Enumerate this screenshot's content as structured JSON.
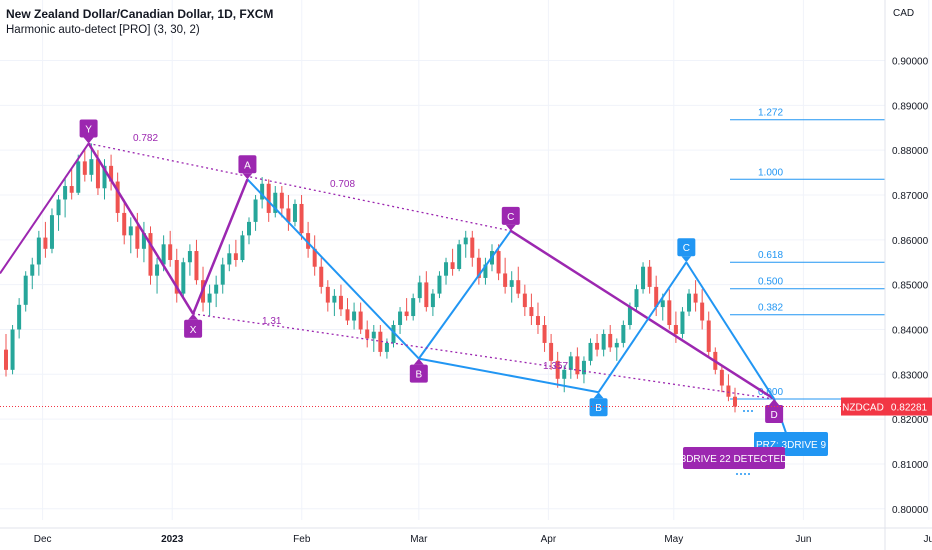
{
  "header": {
    "symbol_title": "New Zealand Dollar/Canadian Dollar, 1D, FXCM",
    "indicator_title": "Harmonic auto-detect [PRO] (3, 30, 2)"
  },
  "price_axis": {
    "currency": "CAD",
    "ticks": [
      "0.90000",
      "0.89000",
      "0.88000",
      "0.87000",
      "0.86000",
      "0.85000",
      "0.84000",
      "0.83000",
      "0.82000",
      "0.81000",
      "0.80000"
    ]
  },
  "time_axis": {
    "ticks": [
      "Dec",
      "2023",
      "Feb",
      "Mar",
      "Apr",
      "May",
      "Jun",
      "Ju"
    ]
  },
  "price_tag": {
    "symbol": "NZDCAD",
    "value": "0.82281"
  },
  "colors": {
    "up": "#26a69a",
    "down": "#ef5350",
    "harmonic_purple": "#9c27b0",
    "harmonic_blue": "#2196f3",
    "price_line": "#f23645"
  },
  "chart_data": {
    "type": "candlestick",
    "ylim": [
      0.7975,
      0.9135
    ],
    "fib_levels": [
      "1.272",
      "1.000",
      "0.618",
      "0.500",
      "0.382",
      "0.000"
    ],
    "fib_values": [
      0.8868,
      0.8735,
      0.855,
      0.8491,
      0.8433,
      0.8245
    ],
    "pattern_3drive": {
      "points": [
        {
          "label": "Y",
          "x": "2022-12-12",
          "y": 0.8815
        },
        {
          "label": "X",
          "x": "2023-01-06",
          "y": 0.8435
        },
        {
          "label": "A",
          "x": "2023-01-19",
          "y": 0.8735
        },
        {
          "label": "B",
          "x": "2023-03-01",
          "y": 0.8335
        },
        {
          "label": "C",
          "x": "2023-03-23",
          "y": 0.862
        },
        {
          "label": "D",
          "x": "2023-05-25",
          "y": 0.8245
        }
      ],
      "ratios": [
        "0.782",
        "0.708",
        "1.31"
      ]
    },
    "pattern_blue": {
      "points": [
        {
          "label": "B",
          "x": "2023-04-13",
          "y": 0.826
        },
        {
          "label": "C",
          "x": "2023-05-04",
          "y": 0.855
        },
        {
          "label": "D",
          "x": "2023-05-25",
          "y": 0.8245
        }
      ],
      "ratios": [
        "1.357"
      ]
    },
    "badges": [
      "3DRIVE 22 DETECTED",
      "PRZ: 3DRIVE 9"
    ],
    "candles": [
      [
        0.8355,
        0.839,
        0.8295,
        0.831
      ],
      [
        0.831,
        0.841,
        0.83,
        0.84
      ],
      [
        0.84,
        0.847,
        0.838,
        0.8455
      ],
      [
        0.8455,
        0.853,
        0.844,
        0.852
      ],
      [
        0.852,
        0.856,
        0.849,
        0.8545
      ],
      [
        0.8545,
        0.862,
        0.852,
        0.8605
      ],
      [
        0.8605,
        0.864,
        0.856,
        0.858
      ],
      [
        0.858,
        0.867,
        0.857,
        0.8655
      ],
      [
        0.8655,
        0.87,
        0.862,
        0.869
      ],
      [
        0.869,
        0.874,
        0.865,
        0.872
      ],
      [
        0.872,
        0.876,
        0.869,
        0.8705
      ],
      [
        0.8705,
        0.879,
        0.87,
        0.8775
      ],
      [
        0.8775,
        0.88,
        0.873,
        0.8745
      ],
      [
        0.8745,
        0.8815,
        0.873,
        0.878
      ],
      [
        0.878,
        0.88,
        0.87,
        0.8715
      ],
      [
        0.8715,
        0.878,
        0.869,
        0.8765
      ],
      [
        0.8765,
        0.879,
        0.871,
        0.873
      ],
      [
        0.873,
        0.875,
        0.864,
        0.866
      ],
      [
        0.866,
        0.869,
        0.859,
        0.861
      ],
      [
        0.861,
        0.865,
        0.857,
        0.863
      ],
      [
        0.863,
        0.866,
        0.856,
        0.858
      ],
      [
        0.858,
        0.864,
        0.855,
        0.8615
      ],
      [
        0.8615,
        0.863,
        0.85,
        0.852
      ],
      [
        0.852,
        0.856,
        0.848,
        0.8545
      ],
      [
        0.8545,
        0.861,
        0.853,
        0.859
      ],
      [
        0.859,
        0.862,
        0.854,
        0.8555
      ],
      [
        0.8555,
        0.858,
        0.846,
        0.848
      ],
      [
        0.848,
        0.856,
        0.847,
        0.855
      ],
      [
        0.855,
        0.859,
        0.852,
        0.8575
      ],
      [
        0.8575,
        0.86,
        0.85,
        0.851
      ],
      [
        0.851,
        0.854,
        0.844,
        0.846
      ],
      [
        0.846,
        0.85,
        0.843,
        0.848
      ],
      [
        0.848,
        0.852,
        0.845,
        0.85
      ],
      [
        0.85,
        0.856,
        0.848,
        0.8545
      ],
      [
        0.8545,
        0.859,
        0.853,
        0.857
      ],
      [
        0.857,
        0.86,
        0.854,
        0.8555
      ],
      [
        0.8555,
        0.862,
        0.855,
        0.861
      ],
      [
        0.861,
        0.865,
        0.859,
        0.864
      ],
      [
        0.864,
        0.87,
        0.862,
        0.869
      ],
      [
        0.869,
        0.874,
        0.867,
        0.8725
      ],
      [
        0.8725,
        0.8735,
        0.864,
        0.866
      ],
      [
        0.866,
        0.872,
        0.865,
        0.8705
      ],
      [
        0.8705,
        0.872,
        0.865,
        0.867
      ],
      [
        0.867,
        0.87,
        0.862,
        0.864
      ],
      [
        0.864,
        0.869,
        0.863,
        0.868
      ],
      [
        0.868,
        0.87,
        0.86,
        0.8615
      ],
      [
        0.8615,
        0.864,
        0.856,
        0.858
      ],
      [
        0.858,
        0.861,
        0.852,
        0.854
      ],
      [
        0.854,
        0.856,
        0.848,
        0.8495
      ],
      [
        0.8495,
        0.851,
        0.844,
        0.846
      ],
      [
        0.846,
        0.849,
        0.843,
        0.8475
      ],
      [
        0.8475,
        0.85,
        0.843,
        0.8445
      ],
      [
        0.8445,
        0.847,
        0.841,
        0.842
      ],
      [
        0.842,
        0.846,
        0.84,
        0.844
      ],
      [
        0.844,
        0.846,
        0.839,
        0.84
      ],
      [
        0.84,
        0.842,
        0.836,
        0.838
      ],
      [
        0.838,
        0.841,
        0.835,
        0.8395
      ],
      [
        0.8395,
        0.841,
        0.834,
        0.835
      ],
      [
        0.835,
        0.838,
        0.8335,
        0.837
      ],
      [
        0.837,
        0.842,
        0.836,
        0.841
      ],
      [
        0.841,
        0.845,
        0.839,
        0.844
      ],
      [
        0.844,
        0.847,
        0.842,
        0.843
      ],
      [
        0.843,
        0.848,
        0.842,
        0.847
      ],
      [
        0.847,
        0.852,
        0.846,
        0.8505
      ],
      [
        0.8505,
        0.853,
        0.844,
        0.845
      ],
      [
        0.845,
        0.849,
        0.843,
        0.848
      ],
      [
        0.848,
        0.853,
        0.847,
        0.852
      ],
      [
        0.852,
        0.856,
        0.85,
        0.855
      ],
      [
        0.855,
        0.858,
        0.852,
        0.8535
      ],
      [
        0.8535,
        0.86,
        0.853,
        0.859
      ],
      [
        0.859,
        0.862,
        0.856,
        0.8605
      ],
      [
        0.8605,
        0.862,
        0.854,
        0.856
      ],
      [
        0.856,
        0.858,
        0.85,
        0.8515
      ],
      [
        0.8515,
        0.856,
        0.85,
        0.8545
      ],
      [
        0.8545,
        0.859,
        0.853,
        0.8575
      ],
      [
        0.8575,
        0.859,
        0.851,
        0.8525
      ],
      [
        0.8525,
        0.856,
        0.848,
        0.8495
      ],
      [
        0.8495,
        0.853,
        0.846,
        0.851
      ],
      [
        0.851,
        0.854,
        0.847,
        0.848
      ],
      [
        0.848,
        0.85,
        0.843,
        0.845
      ],
      [
        0.845,
        0.848,
        0.841,
        0.843
      ],
      [
        0.843,
        0.846,
        0.839,
        0.841
      ],
      [
        0.841,
        0.843,
        0.835,
        0.837
      ],
      [
        0.837,
        0.839,
        0.831,
        0.833
      ],
      [
        0.833,
        0.835,
        0.827,
        0.829
      ],
      [
        0.829,
        0.832,
        0.826,
        0.831
      ],
      [
        0.831,
        0.835,
        0.829,
        0.834
      ],
      [
        0.834,
        0.836,
        0.829,
        0.83
      ],
      [
        0.83,
        0.834,
        0.828,
        0.833
      ],
      [
        0.833,
        0.838,
        0.832,
        0.837
      ],
      [
        0.837,
        0.839,
        0.834,
        0.8355
      ],
      [
        0.8355,
        0.84,
        0.834,
        0.839
      ],
      [
        0.839,
        0.841,
        0.835,
        0.836
      ],
      [
        0.836,
        0.838,
        0.833,
        0.837
      ],
      [
        0.837,
        0.842,
        0.836,
        0.841
      ],
      [
        0.841,
        0.846,
        0.84,
        0.845
      ],
      [
        0.845,
        0.85,
        0.844,
        0.849
      ],
      [
        0.849,
        0.855,
        0.848,
        0.854
      ],
      [
        0.854,
        0.8555,
        0.848,
        0.8495
      ],
      [
        0.8495,
        0.852,
        0.843,
        0.845
      ],
      [
        0.845,
        0.848,
        0.842,
        0.8465
      ],
      [
        0.8465,
        0.849,
        0.84,
        0.841
      ],
      [
        0.841,
        0.844,
        0.837,
        0.839
      ],
      [
        0.839,
        0.845,
        0.838,
        0.844
      ],
      [
        0.844,
        0.849,
        0.843,
        0.848
      ],
      [
        0.848,
        0.851,
        0.844,
        0.846
      ],
      [
        0.846,
        0.849,
        0.84,
        0.842
      ],
      [
        0.842,
        0.844,
        0.834,
        0.835
      ],
      [
        0.835,
        0.836,
        0.83,
        0.831
      ],
      [
        0.831,
        0.832,
        0.826,
        0.8275
      ],
      [
        0.8275,
        0.83,
        0.824,
        0.825
      ],
      [
        0.825,
        0.827,
        0.8215,
        0.8228
      ]
    ]
  }
}
